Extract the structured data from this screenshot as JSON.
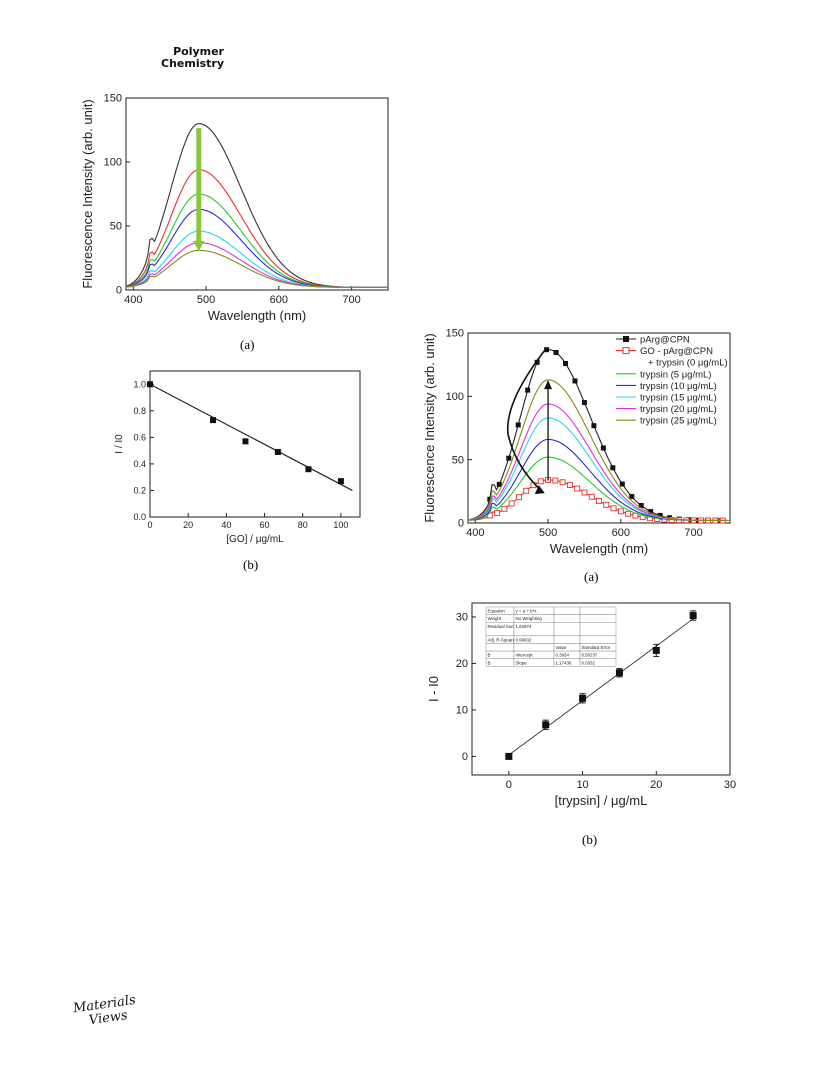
{
  "header": {
    "journal_line1": "Polymer",
    "journal_line2": "Chemistry"
  },
  "footer": {
    "logo_line1": "Materials",
    "logo_line2": "Views"
  },
  "captions": {
    "fig_left_a": "(a)",
    "fig_left_b": "(b)",
    "fig_right_a": "(a)",
    "fig_right_b": "(b)"
  },
  "chart_data": [
    {
      "id": "left_a",
      "type": "line",
      "xlabel": "Wavelength (nm)",
      "ylabel": "Fluorescence Intensity (arb. unit)",
      "xlim": [
        390,
        750
      ],
      "ylim": [
        0,
        150
      ],
      "xticks": [
        400,
        500,
        600,
        700
      ],
      "yticks": [
        0,
        50,
        100,
        150
      ],
      "peak_x": 490,
      "series": [
        {
          "peak": 128,
          "color": "#333333"
        },
        {
          "peak": 92,
          "color": "#e8302a"
        },
        {
          "peak": 73,
          "color": "#22cc22"
        },
        {
          "peak": 61,
          "color": "#2a2ad8"
        },
        {
          "peak": 44,
          "color": "#22d8e8"
        },
        {
          "peak": 35,
          "color": "#e030e0"
        },
        {
          "peak": 29,
          "color": "#8a8a10"
        }
      ],
      "arrow_color": "#8cc63f"
    },
    {
      "id": "left_b",
      "type": "scatter",
      "xlabel": "[GO] / μg/mL",
      "ylabel": "I / I0",
      "xlim": [
        0,
        110
      ],
      "ylim": [
        0,
        1.1
      ],
      "xticks": [
        0,
        20,
        40,
        60,
        80,
        100
      ],
      "yticks": [
        0.0,
        0.2,
        0.4,
        0.6,
        0.8,
        1.0
      ],
      "points": [
        [
          0,
          1.0
        ],
        [
          33,
          0.73
        ],
        [
          50,
          0.57
        ],
        [
          67,
          0.49
        ],
        [
          83,
          0.36
        ],
        [
          100,
          0.27
        ]
      ],
      "fit_line": [
        [
          0,
          1.0
        ],
        [
          106,
          0.2
        ]
      ]
    },
    {
      "id": "right_a",
      "type": "line",
      "xlabel": "Wavelength (nm)",
      "ylabel": "Fluorescence Intensity (arb. unit)",
      "xlim": [
        390,
        750
      ],
      "ylim": [
        0,
        150
      ],
      "xticks": [
        400,
        500,
        600,
        700
      ],
      "yticks": [
        0,
        50,
        100,
        150
      ],
      "legend": [
        "pArg@CPN",
        "GO - pArg@CPN",
        "+ trypsin (0 μg/mL)",
        "trypsin (5 μg/mL)",
        "trypsin (10 μg/mL)",
        "trypsin (15 μg/mL)",
        "trypsin (20 μg/mL)",
        "trypsin (25 μg/mL)"
      ],
      "series": [
        {
          "peak": 135,
          "color": "#222222",
          "marker": "square-filled"
        },
        {
          "peak": 32,
          "color": "#e8302a",
          "marker": "square-open"
        },
        {
          "peak": 50,
          "color": "#22cc22"
        },
        {
          "peak": 64,
          "color": "#2a2ad8"
        },
        {
          "peak": 81,
          "color": "#22d8e8"
        },
        {
          "peak": 92,
          "color": "#e030e0"
        },
        {
          "peak": 111,
          "color": "#8a8a10"
        }
      ],
      "peak_x": 500
    },
    {
      "id": "right_b",
      "type": "scatter",
      "xlabel": "[trypsin] / μg/mL",
      "ylabel": "I - I0",
      "xlim": [
        -5,
        30
      ],
      "ylim": [
        -4,
        33
      ],
      "xticks": [
        0,
        10,
        20,
        30
      ],
      "yticks": [
        0,
        10,
        20,
        30
      ],
      "points": [
        [
          0,
          0
        ],
        [
          5,
          6.8
        ],
        [
          10,
          12.5
        ],
        [
          15,
          18.0
        ],
        [
          20,
          22.8
        ],
        [
          25,
          30.3
        ]
      ],
      "errors": [
        0.3,
        1.0,
        1.0,
        0.9,
        1.3,
        1.0
      ],
      "fit_line": [
        [
          0,
          0.3
        ],
        [
          25,
          29.6
        ]
      ],
      "table": [
        [
          "Equation",
          "y = a + b*x",
          "",
          ""
        ],
        [
          "Weight",
          "No Weighting",
          "",
          ""
        ],
        [
          "Residual Sum of Squares",
          "1.62874",
          "",
          ""
        ],
        [
          "Adj. R-Square",
          "0.99632",
          "",
          ""
        ],
        [
          "",
          "",
          "Value",
          "Standard Error"
        ],
        [
          "B",
          "Intercept",
          "0.3934",
          "0.50237"
        ],
        [
          "B",
          "Slope",
          "1.17436",
          "0.0332"
        ]
      ]
    }
  ]
}
